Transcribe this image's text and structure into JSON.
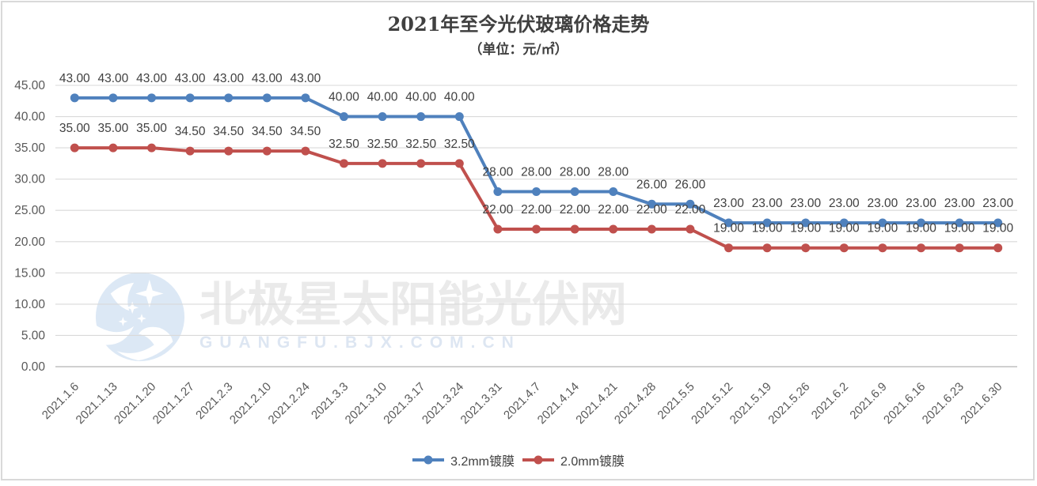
{
  "title": "2021年至今光伏玻璃价格走势",
  "subtitle": "（单位：元/㎡）",
  "watermark": {
    "line1": "北极星太阳能光伏网",
    "line2": "GUANGFU.BJX.COM.CN"
  },
  "chart_data": {
    "type": "line",
    "title": "2021年至今光伏玻璃价格走势",
    "subtitle": "（单位：元/㎡）",
    "categories": [
      "2021.1.6",
      "2021.1.13",
      "2021.1.20",
      "2021.1.27",
      "2021.2.3",
      "2021.2.10",
      "2021.2.24",
      "2021.3.3",
      "2021.3.10",
      "2021.3.17",
      "2021.3.24",
      "2021.3.31",
      "2021.4.7",
      "2021.4.14",
      "2021.4.21",
      "2021.4.28",
      "2021.5.5",
      "2021.5.12",
      "2021.5.19",
      "2021.5.26",
      "2021.6.2",
      "2021.6.9",
      "2021.6.16",
      "2021.6.23",
      "2021.6.30"
    ],
    "series": [
      {
        "name": "3.2mm镀膜",
        "color": "#4F81BD",
        "values": [
          43,
          43,
          43,
          43,
          43,
          43,
          43,
          40,
          40,
          40,
          40,
          28,
          28,
          28,
          28,
          26,
          26,
          23,
          23,
          23,
          23,
          23,
          23,
          23,
          23
        ]
      },
      {
        "name": "2.0mm镀膜",
        "color": "#C0504D",
        "values": [
          35,
          35,
          35,
          34.5,
          34.5,
          34.5,
          34.5,
          32.5,
          32.5,
          32.5,
          32.5,
          22,
          22,
          22,
          22,
          22,
          22,
          19,
          19,
          19,
          19,
          19,
          19,
          19,
          19
        ]
      }
    ],
    "ylim": [
      0,
      45
    ],
    "ytick_step": 5,
    "ytick_labels": [
      "0.00",
      "5.00",
      "10.00",
      "15.00",
      "20.00",
      "25.00",
      "30.00",
      "35.00",
      "40.00",
      "45.00"
    ],
    "grid": true,
    "legend_position": "bottom",
    "data_label_decimals": 2
  },
  "colors": {
    "gridline": "#D9D9D9",
    "axis_line": "#C0C0C0",
    "axis_text": "#595959",
    "data_label": "#404040",
    "title_text": "#404040",
    "border": "#D9D9D9",
    "watermark_cn": "#EAEAEA",
    "watermark_en": "#DDE6F2",
    "logo_blue": "#DCE8F5"
  }
}
